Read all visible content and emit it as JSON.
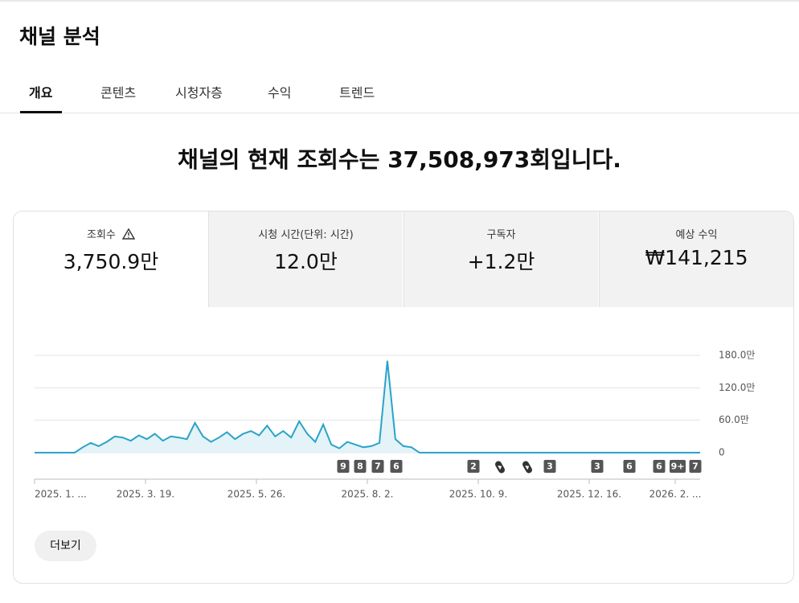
{
  "header": {
    "title": "채널 분석"
  },
  "tabs": [
    "개요",
    "콘텐츠",
    "시청자층",
    "수익",
    "트렌드"
  ],
  "headline": "채널의 현재 조회수는 37,508,973회입니다.",
  "metrics": [
    {
      "label": "조회수",
      "value": "3,750.9만"
    },
    {
      "label": "시청 시간(단위: 시간)",
      "value": "12.0만"
    },
    {
      "label": "구독자",
      "value": "+1.2만"
    },
    {
      "label": "예상 수익",
      "value": "₩141,215"
    }
  ],
  "chart_data": {
    "type": "line",
    "color": "#2aa3c9",
    "grid": true,
    "values": [
      0,
      0,
      0,
      0,
      0,
      0,
      10,
      18,
      12,
      20,
      30,
      28,
      22,
      32,
      25,
      35,
      22,
      30,
      28,
      25,
      55,
      30,
      20,
      28,
      38,
      25,
      35,
      40,
      32,
      50,
      30,
      40,
      28,
      58,
      35,
      20,
      52,
      15,
      8,
      20,
      15,
      10,
      12,
      18,
      170,
      25,
      12,
      10,
      0,
      0,
      0,
      0,
      0,
      0,
      0,
      0,
      0,
      0,
      0,
      0,
      0,
      0,
      0,
      0,
      0,
      0,
      0,
      0,
      0,
      0,
      0,
      0,
      0,
      0,
      0,
      0,
      0,
      0,
      0,
      0,
      0,
      0,
      0,
      0
    ],
    "ylim": [
      0,
      180
    ],
    "yticks": [
      {
        "value": 0,
        "label": "0"
      },
      {
        "value": 60,
        "label": "60.0만"
      },
      {
        "value": 120,
        "label": "120.0만"
      },
      {
        "value": 180,
        "label": "180.0만"
      }
    ],
    "x_labels": [
      "2025. 1. ...",
      "2025. 3. 19.",
      "2025. 5. 26.",
      "2025. 8. 2.",
      "2025. 10. 9.",
      "2025. 12. 16.",
      "2026. 2. ..."
    ],
    "markers": [
      "9",
      "8",
      "7",
      "6",
      "2",
      "3",
      "3",
      "6",
      "6",
      "9+",
      "7"
    ]
  },
  "more_button": "더보기"
}
